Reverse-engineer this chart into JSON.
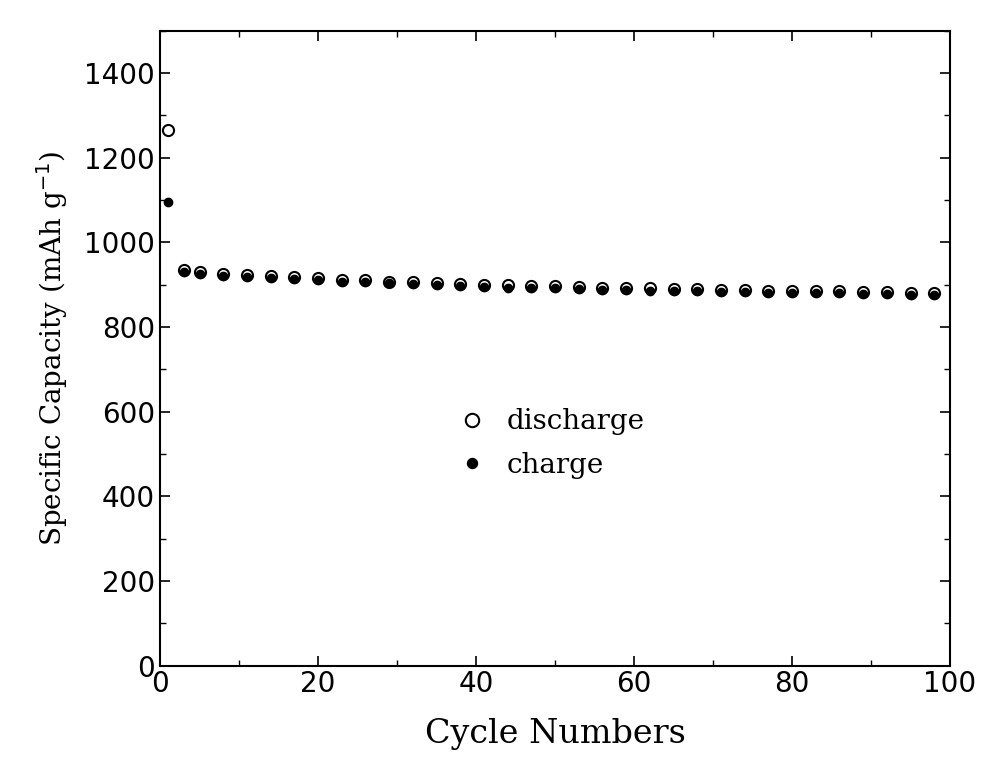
{
  "discharge_cycles": [
    1,
    3,
    5,
    8,
    11,
    14,
    17,
    20,
    23,
    26,
    29,
    32,
    35,
    38,
    41,
    44,
    47,
    50,
    53,
    56,
    59,
    62,
    65,
    68,
    71,
    74,
    77,
    80,
    83,
    86,
    89,
    92,
    95,
    98
  ],
  "discharge_values": [
    1265,
    935,
    930,
    925,
    923,
    921,
    918,
    916,
    912,
    910,
    907,
    906,
    903,
    901,
    900,
    898,
    897,
    896,
    895,
    893,
    892,
    891,
    890,
    889,
    888,
    887,
    886,
    886,
    885,
    884,
    883,
    882,
    881,
    880
  ],
  "charge_cycles": [
    1,
    3,
    5,
    8,
    11,
    14,
    17,
    20,
    23,
    26,
    29,
    32,
    35,
    38,
    41,
    44,
    47,
    50,
    53,
    56,
    59,
    62,
    65,
    68,
    71,
    74,
    77,
    80,
    83,
    86,
    89,
    92,
    95,
    98
  ],
  "charge_values": [
    1095,
    930,
    925,
    920,
    918,
    916,
    913,
    911,
    907,
    905,
    903,
    902,
    899,
    897,
    895,
    893,
    892,
    891,
    890,
    888,
    887,
    886,
    885,
    884,
    883,
    882,
    881,
    880,
    879,
    879,
    878,
    877,
    876,
    875
  ],
  "xlabel": "Cycle Numbers",
  "xlim": [
    0,
    100
  ],
  "ylim": [
    0,
    1500
  ],
  "yticks": [
    0,
    200,
    400,
    600,
    800,
    1000,
    1200,
    1400
  ],
  "xticks": [
    0,
    20,
    40,
    60,
    80,
    100
  ],
  "legend_discharge": "discharge",
  "legend_charge": "charge",
  "background_color": "#ffffff",
  "discharge_marker_size": 8,
  "charge_marker_size": 6,
  "discharge_marker": "o",
  "charge_marker": "o",
  "discharge_color": "black",
  "charge_color": "black",
  "tick_labelsize": 20,
  "xlabel_fontsize": 24,
  "ylabel_fontsize": 20,
  "legend_fontsize": 20
}
